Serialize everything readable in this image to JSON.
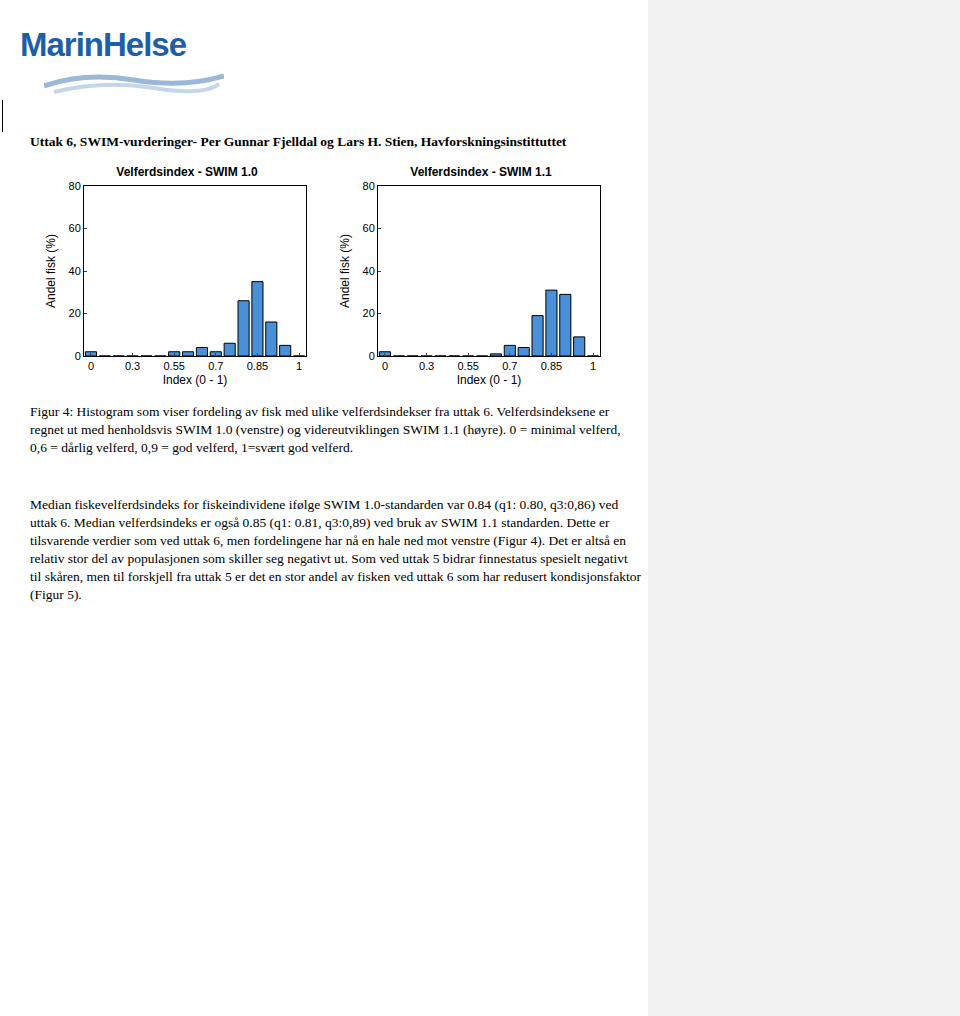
{
  "header": {
    "logo": "MarinHelse",
    "title": "Uttak 6, SWIM-vurderinger- Per Gunnar Fjelldal og Lars H. Stien, Havforskningsinstittuttet"
  },
  "chart_data": [
    {
      "type": "bar",
      "title": "Velferdsindex - SWIM 1.0",
      "x_label": "Index (0 - 1)",
      "y_label": "Andel fisk (%)",
      "categories": [
        "0",
        null,
        null,
        "0.3",
        null,
        null,
        "0.55",
        null,
        null,
        "0.7",
        null,
        null,
        "0.85",
        null,
        null,
        "1"
      ],
      "values": [
        2,
        0,
        0,
        0,
        0,
        0,
        2,
        2,
        4,
        2,
        6,
        26,
        35,
        16,
        5,
        0
      ],
      "color": "#4a90d9",
      "ylim": [
        0,
        80
      ],
      "yticks": [
        0,
        20,
        40,
        60,
        80
      ],
      "grid": false
    },
    {
      "type": "bar",
      "title": "Velferdsindex - SWIM 1.1",
      "x_label": "Index (0 - 1)",
      "y_label": "Andel fisk (%)",
      "categories": [
        "0",
        null,
        null,
        "0.3",
        null,
        null,
        "0.55",
        null,
        null,
        "0.7",
        null,
        null,
        "0.85",
        null,
        null,
        "1"
      ],
      "values": [
        2,
        0,
        0,
        0,
        0,
        0,
        0,
        0,
        1,
        5,
        4,
        19,
        31,
        29,
        9,
        0
      ],
      "color": "#4a90d9",
      "ylim": [
        0,
        80
      ],
      "yticks": [
        0,
        20,
        40,
        60,
        80
      ],
      "grid": false
    }
  ],
  "caption": "Figur 4: Histogram som viser fordeling av fisk med ulike velferdsindekser fra uttak 6. Velferdsindeksene er regnet ut med henholdsvis SWIM 1.0 (venstre) og videreutviklingen SWIM 1.1 (høyre). 0 = minimal velferd, 0,6 = dårlig velferd, 0,9 = god velferd, 1=svært god velferd.",
  "body": "Median fiskevelferdsindeks for fiskeindividene ifølge SWIM 1.0-standarden var 0.84 (q1: 0.80, q3:0,86) ved uttak 6. Median velferdsindeks er også 0.85 (q1: 0.81, q3:0,89) ved bruk av SWIM 1.1 standarden. Dette er tilsvarende verdier som ved uttak 6, men fordelingene har nå en hale ned mot venstre (Figur 4). Det er altså en relativ stor del av populasjonen som skiller seg negativt ut. Som ved uttak 5 bidrar finnestatus spesielt negativt til skåren, men til forskjell fra uttak 5 er det en stor andel av fisken ved uttak 6 som har redusert kondisjonsfaktor (Figur 5)."
}
